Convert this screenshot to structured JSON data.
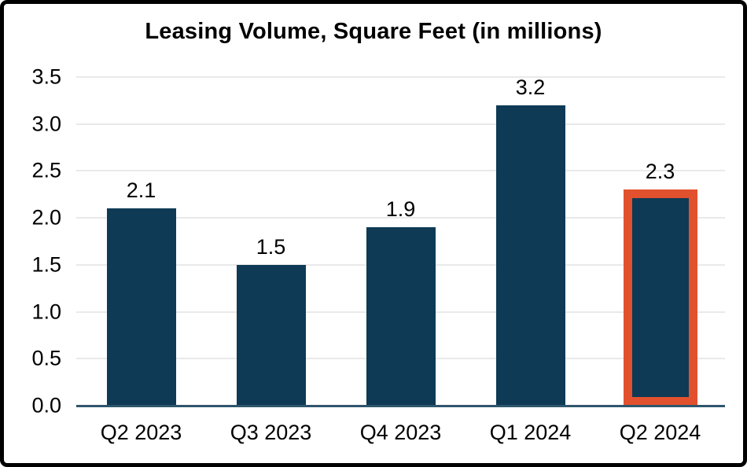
{
  "chart_data": {
    "type": "bar",
    "title": "Leasing Volume, Square Feet (in millions)",
    "categories": [
      "Q2 2023",
      "Q3 2023",
      "Q4 2023",
      "Q1 2024",
      "Q2 2024"
    ],
    "values": [
      2.1,
      1.5,
      1.9,
      3.2,
      2.3
    ],
    "data_labels": [
      "2.1",
      "1.5",
      "1.9",
      "3.2",
      "2.3"
    ],
    "highlight_index": 4,
    "xlabel": "",
    "ylabel": "",
    "ylim": [
      0,
      3.5
    ],
    "ytick_step": 0.5,
    "ytick_labels": [
      "0.0",
      "0.5",
      "1.0",
      "1.5",
      "2.0",
      "2.5",
      "3.0",
      "3.5"
    ],
    "grid": "horizontal-only",
    "legend": "none",
    "colors": {
      "bar": "#0e3a55",
      "highlight_outline": "#e2512e",
      "gridline": "#e9e9e9",
      "axis_line": "#2e566c",
      "text": "#000000",
      "frame_border": "#000000",
      "background": "#ffffff"
    }
  }
}
